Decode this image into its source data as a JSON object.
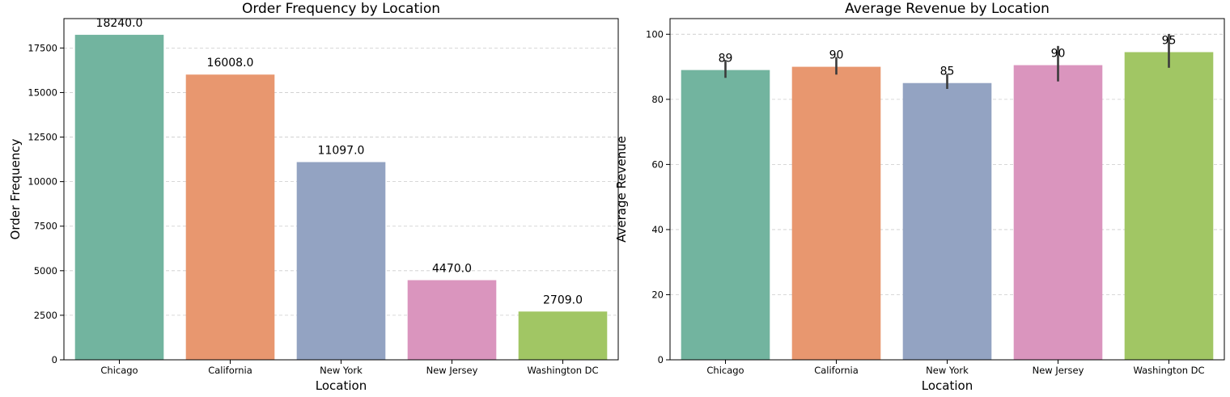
{
  "chart_data": [
    {
      "type": "bar",
      "title": "Order Frequency by Location",
      "xlabel": "Location",
      "ylabel": "Order Frequency",
      "categories": [
        "Chicago",
        "California",
        "New York",
        "New Jersey",
        "Washington DC"
      ],
      "values": [
        18240.0,
        16008.0,
        11097.0,
        4470.0,
        2709.0
      ],
      "data_labels": [
        "18240.0",
        "16008.0",
        "11097.0",
        "4470.0",
        "2709.0"
      ],
      "ylim": [
        0,
        19150
      ],
      "yticks": [
        0,
        2500,
        5000,
        7500,
        10000,
        12500,
        15000,
        17500
      ],
      "ytick_labels": [
        "0",
        "2500",
        "5000",
        "7500",
        "10000",
        "12500",
        "15000",
        "17500"
      ],
      "colors": [
        "#72b49f",
        "#e8976f",
        "#93a3c2",
        "#da95be",
        "#a1c664"
      ],
      "grid": true
    },
    {
      "type": "bar",
      "title": "Average Revenue by Location",
      "xlabel": "Location",
      "ylabel": "Average Revenue",
      "categories": [
        "Chicago",
        "California",
        "New York",
        "New Jersey",
        "Washington DC"
      ],
      "values": [
        89,
        90,
        85,
        90.5,
        94.5
      ],
      "error_low": [
        86.6,
        87.6,
        83.2,
        85.5,
        89.7
      ],
      "error_high": [
        92.1,
        93.0,
        87.8,
        96.4,
        100.1
      ],
      "data_labels": [
        "89",
        "90",
        "85",
        "90",
        "95"
      ],
      "ylim": [
        0,
        104.8
      ],
      "yticks": [
        0,
        20,
        40,
        60,
        80,
        100
      ],
      "ytick_labels": [
        "0",
        "20",
        "40",
        "60",
        "80",
        "100"
      ],
      "colors": [
        "#72b49f",
        "#e8976f",
        "#93a3c2",
        "#da95be",
        "#a1c664"
      ],
      "grid": true
    }
  ]
}
